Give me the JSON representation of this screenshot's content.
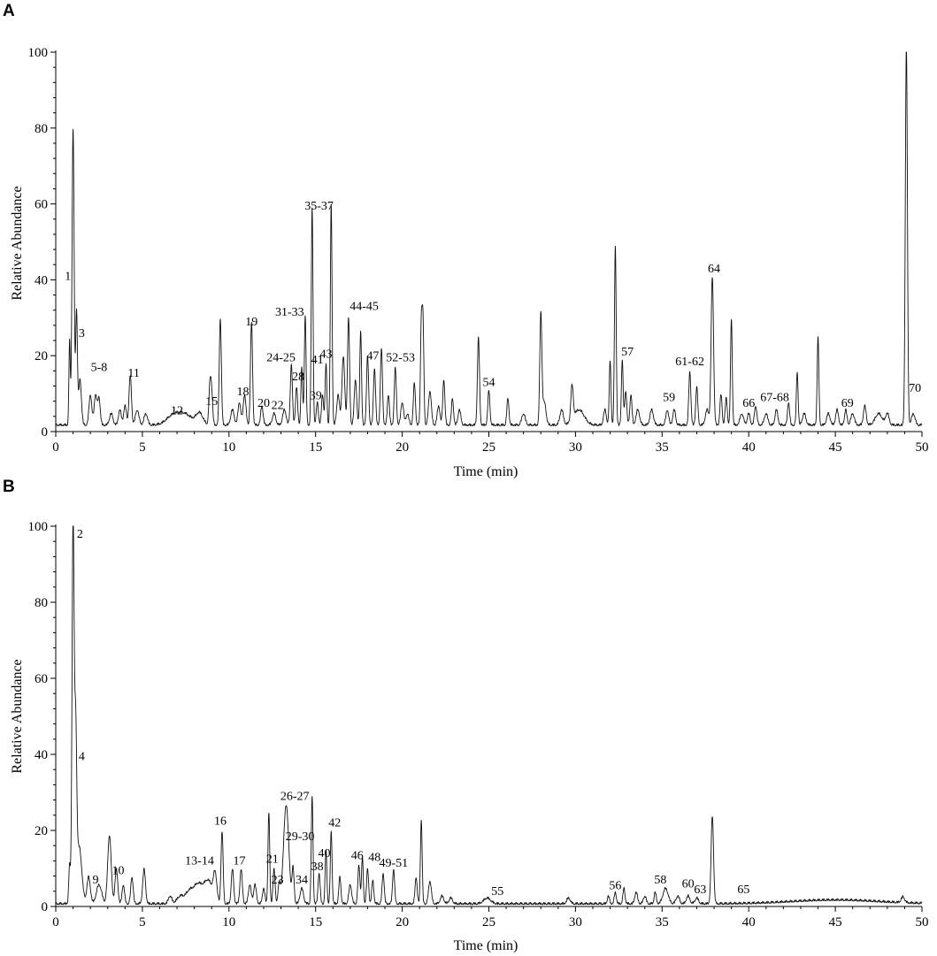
{
  "chart_data": [
    {
      "panel": "A",
      "type": "line",
      "xlabel": "Time (min)",
      "ylabel": "Relative Abundance",
      "xlim": [
        0,
        50
      ],
      "ylim": [
        0,
        100
      ],
      "x_ticks": [
        "0",
        "5",
        "10",
        "15",
        "20",
        "25",
        "30",
        "35",
        "40",
        "45",
        "50"
      ],
      "y_ticks": [
        "0",
        "20",
        "40",
        "60",
        "80",
        "100"
      ],
      "baseline": 1.5,
      "peaks": [
        [
          0.8,
          22,
          0.04
        ],
        [
          1.0,
          78,
          0.06
        ],
        [
          1.2,
          30,
          0.05
        ],
        [
          1.4,
          12,
          0.08
        ],
        [
          2.0,
          8,
          0.08
        ],
        [
          2.3,
          8,
          0.08
        ],
        [
          2.5,
          7,
          0.07
        ],
        [
          3.2,
          3,
          0.1
        ],
        [
          3.7,
          4,
          0.08
        ],
        [
          4.0,
          5,
          0.08
        ],
        [
          4.3,
          13,
          0.07
        ],
        [
          4.7,
          4,
          0.1
        ],
        [
          5.2,
          3,
          0.1
        ],
        [
          6.8,
          2.5,
          0.4
        ],
        [
          7.5,
          2.5,
          0.4
        ],
        [
          8.3,
          3,
          0.2
        ],
        [
          8.9,
          10,
          0.06
        ],
        [
          9.0,
          8,
          0.06
        ],
        [
          9.5,
          28,
          0.06
        ],
        [
          10.2,
          4,
          0.1
        ],
        [
          10.6,
          6,
          0.08
        ],
        [
          10.9,
          8,
          0.08
        ],
        [
          11.3,
          27,
          0.06
        ],
        [
          11.9,
          5,
          0.07
        ],
        [
          12.6,
          3,
          0.1
        ],
        [
          13.2,
          4,
          0.1
        ],
        [
          13.6,
          16,
          0.06
        ],
        [
          13.9,
          10,
          0.06
        ],
        [
          14.2,
          15,
          0.05
        ],
        [
          14.4,
          29,
          0.05
        ],
        [
          14.8,
          57,
          0.05
        ],
        [
          15.1,
          6,
          0.06
        ],
        [
          15.4,
          8,
          0.06
        ],
        [
          15.6,
          16,
          0.05
        ],
        [
          15.9,
          58,
          0.05
        ],
        [
          16.3,
          8,
          0.08
        ],
        [
          16.6,
          18,
          0.08
        ],
        [
          16.9,
          28,
          0.06
        ],
        [
          17.3,
          12,
          0.07
        ],
        [
          17.6,
          25,
          0.05
        ],
        [
          18.0,
          18,
          0.06
        ],
        [
          18.4,
          15,
          0.06
        ],
        [
          18.8,
          20,
          0.06
        ],
        [
          19.2,
          8,
          0.06
        ],
        [
          19.6,
          15,
          0.06
        ],
        [
          20.0,
          6,
          0.08
        ],
        [
          20.3,
          3,
          0.08
        ],
        [
          20.7,
          11,
          0.06
        ],
        [
          21.1,
          26,
          0.05
        ],
        [
          21.2,
          26,
          0.05
        ],
        [
          21.6,
          9,
          0.08
        ],
        [
          22.1,
          5,
          0.08
        ],
        [
          22.4,
          12,
          0.06
        ],
        [
          22.9,
          7,
          0.06
        ],
        [
          23.3,
          4,
          0.08
        ],
        [
          24.4,
          23,
          0.06
        ],
        [
          25.0,
          9,
          0.06
        ],
        [
          26.1,
          7,
          0.06
        ],
        [
          27.0,
          3,
          0.1
        ],
        [
          28.0,
          29,
          0.06
        ],
        [
          28.2,
          6,
          0.1
        ],
        [
          29.2,
          4,
          0.1
        ],
        [
          29.8,
          9,
          0.07
        ],
        [
          30.2,
          4,
          0.3
        ],
        [
          31.7,
          4,
          0.08
        ],
        [
          32.0,
          17,
          0.05
        ],
        [
          32.3,
          47,
          0.05
        ],
        [
          32.7,
          17,
          0.05
        ],
        [
          32.9,
          9,
          0.06
        ],
        [
          33.2,
          8,
          0.06
        ],
        [
          33.6,
          4,
          0.1
        ],
        [
          34.4,
          4,
          0.1
        ],
        [
          35.3,
          4,
          0.08
        ],
        [
          35.7,
          4,
          0.08
        ],
        [
          36.6,
          14,
          0.06
        ],
        [
          37.0,
          10,
          0.06
        ],
        [
          37.6,
          4,
          0.1
        ],
        [
          37.9,
          39,
          0.07
        ],
        [
          38.4,
          8,
          0.06
        ],
        [
          38.7,
          7,
          0.06
        ],
        [
          39.0,
          28,
          0.05
        ],
        [
          39.6,
          3,
          0.1
        ],
        [
          40.0,
          3,
          0.08
        ],
        [
          40.4,
          5,
          0.07
        ],
        [
          41.0,
          3,
          0.1
        ],
        [
          41.6,
          4,
          0.08
        ],
        [
          42.3,
          6,
          0.06
        ],
        [
          42.8,
          14,
          0.05
        ],
        [
          43.2,
          3,
          0.1
        ],
        [
          44.0,
          23,
          0.05
        ],
        [
          44.6,
          3,
          0.1
        ],
        [
          45.1,
          4,
          0.08
        ],
        [
          45.6,
          4,
          0.07
        ],
        [
          46.0,
          3,
          0.1
        ],
        [
          46.7,
          5,
          0.08
        ],
        [
          47.5,
          3,
          0.2
        ],
        [
          48.0,
          3,
          0.1
        ],
        [
          49.1,
          100,
          0.06
        ],
        [
          49.5,
          3,
          0.1
        ]
      ],
      "annotations": [
        {
          "text": "1",
          "x": 0.7,
          "y": 40
        },
        {
          "text": "3",
          "x": 1.5,
          "y": 25
        },
        {
          "text": "5-8",
          "x": 2.5,
          "y": 16
        },
        {
          "text": "11",
          "x": 4.5,
          "y": 14.5
        },
        {
          "text": "12",
          "x": 7.0,
          "y": 4.5
        },
        {
          "text": "15",
          "x": 9.0,
          "y": 7
        },
        {
          "text": "18",
          "x": 10.8,
          "y": 9.5
        },
        {
          "text": "19",
          "x": 11.3,
          "y": 28
        },
        {
          "text": "20",
          "x": 12.0,
          "y": 6.5
        },
        {
          "text": "22",
          "x": 12.8,
          "y": 6
        },
        {
          "text": "24-25",
          "x": 13.0,
          "y": 18.5
        },
        {
          "text": "28",
          "x": 14.0,
          "y": 13.5
        },
        {
          "text": "31-33",
          "x": 13.5,
          "y": 30.5
        },
        {
          "text": "35-37",
          "x": 15.2,
          "y": 58.5
        },
        {
          "text": "41",
          "x": 15.1,
          "y": 18
        },
        {
          "text": "43",
          "x": 15.6,
          "y": 19.5
        },
        {
          "text": "39",
          "x": 15.0,
          "y": 8.5
        },
        {
          "text": "44-45",
          "x": 17.8,
          "y": 32
        },
        {
          "text": "47",
          "x": 18.3,
          "y": 19
        },
        {
          "text": "52-53",
          "x": 19.9,
          "y": 18.5
        },
        {
          "text": "54",
          "x": 25.0,
          "y": 12
        },
        {
          "text": "57",
          "x": 33.0,
          "y": 20
        },
        {
          "text": "59",
          "x": 35.4,
          "y": 8
        },
        {
          "text": "61-62",
          "x": 36.6,
          "y": 17.5
        },
        {
          "text": "64",
          "x": 38.0,
          "y": 42
        },
        {
          "text": "66",
          "x": 40.0,
          "y": 6.5
        },
        {
          "text": "67-68",
          "x": 41.5,
          "y": 8
        },
        {
          "text": "69",
          "x": 45.7,
          "y": 6.5
        },
        {
          "text": "70",
          "x": 49.6,
          "y": 10.5
        }
      ]
    },
    {
      "panel": "B",
      "type": "line",
      "xlabel": "Time (min)",
      "ylabel": "Relative Abundance",
      "xlim": [
        0,
        50
      ],
      "ylim": [
        0,
        100
      ],
      "x_ticks": [
        "0",
        "5",
        "10",
        "15",
        "20",
        "25",
        "30",
        "35",
        "40",
        "45",
        "50"
      ],
      "y_ticks": [
        "0",
        "20",
        "40",
        "60",
        "80",
        "100"
      ],
      "baseline": 0.5,
      "peaks": [
        [
          0.8,
          10,
          0.05
        ],
        [
          1.0,
          100,
          0.06
        ],
        [
          1.15,
          42,
          0.06
        ],
        [
          1.35,
          15,
          0.15
        ],
        [
          1.9,
          7,
          0.1
        ],
        [
          2.5,
          5,
          0.15
        ],
        [
          3.1,
          18,
          0.1
        ],
        [
          3.5,
          9,
          0.08
        ],
        [
          3.9,
          5,
          0.07
        ],
        [
          4.4,
          7,
          0.07
        ],
        [
          5.1,
          9,
          0.08
        ],
        [
          6.6,
          2,
          0.1
        ],
        [
          7.2,
          2,
          0.2
        ],
        [
          7.7,
          3,
          0.2
        ],
        [
          8.2,
          5,
          0.25
        ],
        [
          8.8,
          6,
          0.25
        ],
        [
          9.2,
          7,
          0.1
        ],
        [
          9.6,
          19,
          0.06
        ],
        [
          10.2,
          9,
          0.07
        ],
        [
          10.7,
          9,
          0.07
        ],
        [
          11.2,
          5,
          0.08
        ],
        [
          11.5,
          5,
          0.08
        ],
        [
          12.0,
          4,
          0.07
        ],
        [
          12.3,
          24,
          0.05
        ],
        [
          12.6,
          9,
          0.06
        ],
        [
          12.9,
          5,
          0.07
        ],
        [
          13.3,
          26,
          0.15
        ],
        [
          13.7,
          9,
          0.06
        ],
        [
          14.2,
          4,
          0.1
        ],
        [
          14.8,
          28,
          0.05
        ],
        [
          15.2,
          8,
          0.06
        ],
        [
          15.6,
          14,
          0.05
        ],
        [
          15.9,
          19,
          0.05
        ],
        [
          16.4,
          7,
          0.06
        ],
        [
          17.0,
          5,
          0.08
        ],
        [
          17.5,
          10,
          0.06
        ],
        [
          17.7,
          12,
          0.05
        ],
        [
          18.0,
          9,
          0.06
        ],
        [
          18.3,
          6,
          0.06
        ],
        [
          18.9,
          8,
          0.06
        ],
        [
          19.5,
          9,
          0.06
        ],
        [
          20.8,
          7,
          0.06
        ],
        [
          21.1,
          22,
          0.05
        ],
        [
          21.6,
          6,
          0.08
        ],
        [
          22.3,
          2,
          0.1
        ],
        [
          22.8,
          1.5,
          0.1
        ],
        [
          24.9,
          1.5,
          0.2
        ],
        [
          29.6,
          1.5,
          0.1
        ],
        [
          31.9,
          2,
          0.06
        ],
        [
          32.3,
          3,
          0.06
        ],
        [
          32.8,
          4,
          0.06
        ],
        [
          33.5,
          3,
          0.08
        ],
        [
          34.0,
          2,
          0.08
        ],
        [
          34.6,
          3,
          0.06
        ],
        [
          35.2,
          4,
          0.15
        ],
        [
          35.9,
          2,
          0.1
        ],
        [
          36.5,
          2,
          0.1
        ],
        [
          37.0,
          1.5,
          0.1
        ],
        [
          37.9,
          23,
          0.07
        ],
        [
          45.0,
          1,
          2.5
        ],
        [
          48.9,
          1.5,
          0.1
        ]
      ],
      "annotations": [
        {
          "text": "2",
          "x": 1.4,
          "y": 97
        },
        {
          "text": "4",
          "x": 1.5,
          "y": 38.5
        },
        {
          "text": "9",
          "x": 2.3,
          "y": 6
        },
        {
          "text": "10",
          "x": 3.6,
          "y": 8.5
        },
        {
          "text": "13-14",
          "x": 8.3,
          "y": 11
        },
        {
          "text": "16",
          "x": 9.5,
          "y": 21.5
        },
        {
          "text": "17",
          "x": 10.6,
          "y": 11
        },
        {
          "text": "21",
          "x": 12.5,
          "y": 11.5
        },
        {
          "text": "23",
          "x": 12.8,
          "y": 6
        },
        {
          "text": "26-27",
          "x": 13.8,
          "y": 28
        },
        {
          "text": "29-30",
          "x": 14.1,
          "y": 17.5
        },
        {
          "text": "34",
          "x": 14.2,
          "y": 6
        },
        {
          "text": "38",
          "x": 15.1,
          "y": 9.5
        },
        {
          "text": "40",
          "x": 15.5,
          "y": 13
        },
        {
          "text": "42",
          "x": 16.1,
          "y": 21
        },
        {
          "text": "46",
          "x": 17.4,
          "y": 12.5
        },
        {
          "text": "48",
          "x": 18.4,
          "y": 12
        },
        {
          "text": "49-51",
          "x": 19.5,
          "y": 10.5
        },
        {
          "text": "55",
          "x": 25.5,
          "y": 3
        },
        {
          "text": "56",
          "x": 32.3,
          "y": 4.5
        },
        {
          "text": "58",
          "x": 34.9,
          "y": 6
        },
        {
          "text": "60",
          "x": 36.5,
          "y": 5
        },
        {
          "text": "63",
          "x": 37.2,
          "y": 3.5
        },
        {
          "text": "65",
          "x": 39.7,
          "y": 3.5
        }
      ]
    }
  ]
}
